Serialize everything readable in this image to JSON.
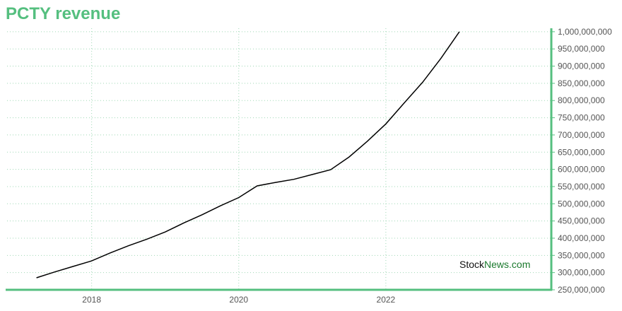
{
  "title": "PCTY revenue",
  "watermark": {
    "part1": "Stock",
    "part2": "News.com",
    "color1": "#111111",
    "color2": "#1b7a2e"
  },
  "colors": {
    "accent": "#55bf7f",
    "line": "#000000",
    "grid": "#9fd8b5"
  },
  "chart_data": {
    "type": "line",
    "title": "PCTY revenue",
    "xlabel": "",
    "ylabel": "",
    "grid": true,
    "xlim": [
      2016.85,
      2024.25
    ],
    "ylim": [
      250000000,
      1010000000
    ],
    "x_ticks": [
      2018,
      2020,
      2022
    ],
    "x_tick_labels": [
      "2018",
      "2020",
      "2022"
    ],
    "y_ticks": [
      250000000,
      300000000,
      350000000,
      400000000,
      450000000,
      500000000,
      550000000,
      600000000,
      650000000,
      700000000,
      750000000,
      800000000,
      850000000,
      900000000,
      950000000,
      1000000000
    ],
    "y_tick_labels": [
      "250,000,000",
      "300,000,000",
      "350,000,000",
      "400,000,000",
      "450,000,000",
      "500,000,000",
      "550,000,000",
      "600,000,000",
      "650,000,000",
      "700,000,000",
      "750,000,000",
      "800,000,000",
      "850,000,000",
      "900,000,000",
      "950,000,000",
      "1,000,000,000"
    ],
    "series": [
      {
        "x": [
          2017.25,
          2017.5,
          2017.75,
          2018.0,
          2018.25,
          2018.5,
          2018.75,
          2019.0,
          2019.25,
          2019.5,
          2019.75,
          2020.0,
          2020.25,
          2020.5,
          2020.75,
          2021.0,
          2021.25,
          2021.5,
          2021.75,
          2022.0,
          2022.25,
          2022.5,
          2022.75,
          2023.0
        ],
        "values": [
          285000000,
          302000000,
          318000000,
          334000000,
          357000000,
          378000000,
          397000000,
          418000000,
          444000000,
          468000000,
          494000000,
          518000000,
          552000000,
          562000000,
          571000000,
          585000000,
          599000000,
          636000000,
          682000000,
          732000000,
          793000000,
          853000000,
          923000000,
          1000000000
        ]
      }
    ]
  }
}
